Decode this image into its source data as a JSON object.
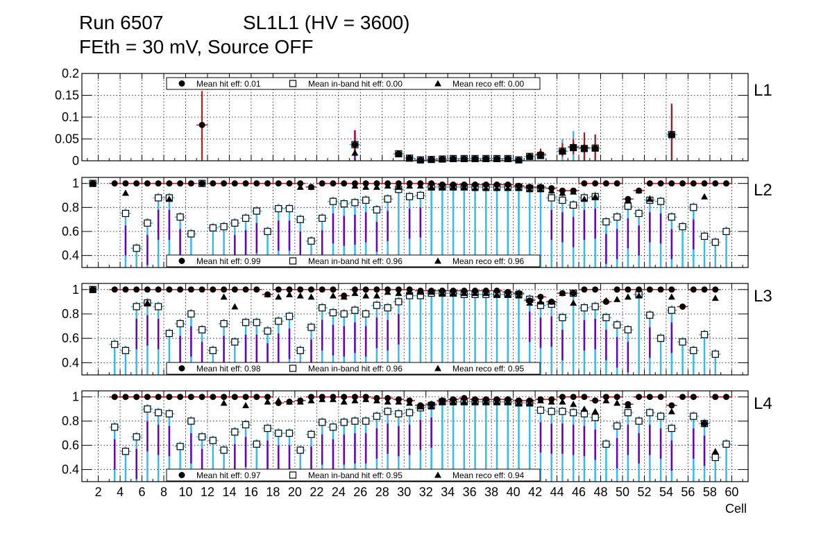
{
  "title": {
    "run": "Run 6507",
    "chamber": "SL1L1 (HV = 3600)",
    "conditions": "FEth = 30 mV, Source OFF"
  },
  "colors": {
    "hit": "#000000",
    "hit_err": "#d40000",
    "inband_err": "#33bbee",
    "reco_err": "#6a00b8",
    "grid": "#000000"
  },
  "chart_data": {
    "type": "scatter",
    "xlabel": "Cell",
    "x_ticks": [
      2,
      4,
      6,
      8,
      10,
      12,
      14,
      16,
      18,
      20,
      22,
      24,
      26,
      28,
      30,
      32,
      34,
      36,
      38,
      40,
      42,
      44,
      46,
      48,
      50,
      52,
      54,
      56,
      58,
      60
    ],
    "xlim": [
      0.5,
      61.5
    ],
    "series_names": [
      "Mean hit eff",
      "Mean in-band hit eff",
      "Mean reco eff"
    ],
    "panels": [
      {
        "id": "L1",
        "label": "L1",
        "ylim": [
          0,
          0.2
        ],
        "yticks": [
          "0",
          "0.05",
          "0.1",
          "0.15",
          "0.2"
        ],
        "yticks_val": [
          0,
          0.05,
          0.1,
          0.15,
          0.2
        ],
        "legend": {
          "hit": "Mean hit  eff: 0.01",
          "inband": "Mean in-band hit eff: 0.00",
          "reco": "Mean reco eff: 0.00"
        },
        "points": [
          {
            "cell": 11.5,
            "hit": 0.082,
            "inband": null,
            "reco": null,
            "hit_lo": 0.0,
            "hit_hi": 0.16
          },
          {
            "cell": 25.5,
            "hit": 0.037,
            "inband": 0.037,
            "reco": 0.018,
            "hit_lo": 0.02,
            "hit_hi": 0.07,
            "ib_lo": 0.01,
            "ib_hi": 0.06,
            "reco_lo": 0.0,
            "reco_hi": 0.07
          },
          {
            "cell": 29.5,
            "hit": 0.016,
            "inband": 0.016,
            "reco": 0.016,
            "hit_lo": 0.01,
            "hit_hi": 0.024
          },
          {
            "cell": 30.5,
            "hit": 0.006,
            "inband": 0.006,
            "reco": 0.006
          },
          {
            "cell": 31.5,
            "hit": 0.002,
            "inband": 0.002,
            "reco": 0.002
          },
          {
            "cell": 32.5,
            "hit": 0.003,
            "inband": 0.003,
            "reco": 0.003
          },
          {
            "cell": 33.5,
            "hit": 0.004,
            "inband": 0.004,
            "reco": 0.004
          },
          {
            "cell": 34.5,
            "hit": 0.005,
            "inband": 0.005,
            "reco": 0.005
          },
          {
            "cell": 35.5,
            "hit": 0.005,
            "inband": 0.005,
            "reco": 0.005
          },
          {
            "cell": 36.5,
            "hit": 0.005,
            "inband": 0.005,
            "reco": 0.005
          },
          {
            "cell": 37.5,
            "hit": 0.005,
            "inband": 0.005,
            "reco": 0.005
          },
          {
            "cell": 38.5,
            "hit": 0.005,
            "inband": 0.005,
            "reco": 0.005
          },
          {
            "cell": 39.5,
            "hit": 0.005,
            "inband": 0.005,
            "reco": 0.005
          },
          {
            "cell": 40.5,
            "hit": 0.002,
            "inband": 0.002,
            "reco": 0.002
          },
          {
            "cell": 41.5,
            "hit": 0.01,
            "inband": 0.01,
            "reco": 0.01
          },
          {
            "cell": 42.5,
            "hit": 0.015,
            "inband": 0.012,
            "reco": 0.012,
            "hit_lo": 0.005,
            "hit_hi": 0.028
          },
          {
            "cell": 44.5,
            "hit": 0.022,
            "inband": 0.022,
            "reco": 0.022,
            "hit_lo": 0.01,
            "hit_hi": 0.04,
            "ib_lo": 0.0,
            "ib_hi": 0.05
          },
          {
            "cell": 45.5,
            "hit": 0.032,
            "inband": 0.03,
            "reco": 0.03,
            "hit_lo": 0.015,
            "hit_hi": 0.05,
            "ib_lo": 0.0,
            "ib_hi": 0.068
          },
          {
            "cell": 46.5,
            "hit": 0.03,
            "inband": 0.028,
            "reco": 0.028,
            "hit_lo": 0.0,
            "hit_hi": 0.065,
            "ib_lo": 0.0,
            "ib_hi": 0.04
          },
          {
            "cell": 47.5,
            "hit": 0.029,
            "inband": 0.029,
            "reco": 0.029,
            "hit_lo": 0.0,
            "hit_hi": 0.06,
            "ib_lo": 0.0,
            "ib_hi": 0.06
          },
          {
            "cell": 54.5,
            "hit": 0.06,
            "inband": 0.06,
            "reco": 0.06,
            "hit_lo": 0.0,
            "hit_hi": 0.13,
            "ib_lo": 0.0,
            "ib_hi": 0.132
          }
        ]
      },
      {
        "id": "L2",
        "label": "L2",
        "ylim": [
          0.3,
          1.05
        ],
        "yticks": [
          "0.4",
          "0.6",
          "0.8",
          "1"
        ],
        "yticks_val": [
          0.4,
          0.6,
          0.8,
          1.0
        ],
        "legend": {
          "hit": "Mean hit  eff: 0.99",
          "inband": "Mean in-band hit eff: 0.96",
          "reco": "Mean reco eff: 0.96"
        },
        "inband": [
          1.0,
          null,
          null,
          0.75,
          0.46,
          0.67,
          0.88,
          0.88,
          0.72,
          0.58,
          1.0,
          0.63,
          0.64,
          0.67,
          0.71,
          0.77,
          0.6,
          0.79,
          0.79,
          0.7,
          0.52,
          0.71,
          0.85,
          0.83,
          0.84,
          0.86,
          0.78,
          0.87,
          0.95,
          0.89,
          0.9,
          0.97,
          0.97,
          0.97,
          0.97,
          0.97,
          0.97,
          0.97,
          0.97,
          0.97,
          0.96,
          0.96,
          0.88,
          0.86,
          0.82,
          0.88,
          0.89,
          0.68,
          0.72,
          0.81,
          0.75,
          0.86,
          0.85,
          0.72,
          0.64,
          0.8,
          0.56,
          0.51,
          0.6,
          null
        ],
        "hit": [
          1.0,
          null,
          1.0,
          1.0,
          1.0,
          1.0,
          1.0,
          1.0,
          1.0,
          1.0,
          1.0,
          1.0,
          1.0,
          1.0,
          1.0,
          1.0,
          1.0,
          1.0,
          1.0,
          1.0,
          0.97,
          1.0,
          1.0,
          1.0,
          1.0,
          1.0,
          1.0,
          1.0,
          1.0,
          1.0,
          1.0,
          1.0,
          0.99,
          0.99,
          0.99,
          0.99,
          0.99,
          0.99,
          0.99,
          0.98,
          0.97,
          0.97,
          0.96,
          0.94,
          0.94,
          1.0,
          1.0,
          1.0,
          1.0,
          0.87,
          0.94,
          1.0,
          1.0,
          1.0,
          1.0,
          1.0,
          1.0,
          1.0,
          1.0,
          null
        ],
        "reco": [
          1.0,
          null,
          null,
          0.92,
          null,
          null,
          null,
          0.87,
          null,
          null,
          null,
          null,
          null,
          null,
          null,
          null,
          null,
          null,
          null,
          0.97,
          0.97,
          null,
          null,
          null,
          0.98,
          0.97,
          0.97,
          0.98,
          0.97,
          0.98,
          0.98,
          0.97,
          0.97,
          0.97,
          0.97,
          0.96,
          0.96,
          0.96,
          0.96,
          0.96,
          0.95,
          0.95,
          0.94,
          0.92,
          0.93,
          0.87,
          0.89,
          null,
          null,
          0.86,
          0.94,
          0.87,
          null,
          null,
          null,
          null,
          0.89,
          null,
          null,
          null
        ]
      },
      {
        "id": "L3",
        "label": "L3",
        "ylim": [
          0.3,
          1.05
        ],
        "yticks": [
          "0.4",
          "0.6",
          "0.8",
          "1"
        ],
        "yticks_val": [
          0.4,
          0.6,
          0.8,
          1.0
        ],
        "legend": {
          "hit": "Mean hit  eff: 0.98",
          "inband": "Mean in-band hit eff: 0.96",
          "reco": "Mean reco eff: 0.95"
        },
        "inband": [
          1.0,
          null,
          0.55,
          0.5,
          0.86,
          0.89,
          0.86,
          0.64,
          0.72,
          0.8,
          0.67,
          0.5,
          0.72,
          0.57,
          0.73,
          0.73,
          0.66,
          0.74,
          0.78,
          0.5,
          0.69,
          0.85,
          0.81,
          0.8,
          0.83,
          0.8,
          0.87,
          0.85,
          0.9,
          0.95,
          0.95,
          0.97,
          0.97,
          0.97,
          0.96,
          0.96,
          0.96,
          0.96,
          0.96,
          0.96,
          0.92,
          0.87,
          0.88,
          0.77,
          0.97,
          0.85,
          0.86,
          0.77,
          0.71,
          0.67,
          0.96,
          0.79,
          0.6,
          0.83,
          0.57,
          0.5,
          0.63,
          0.47,
          null,
          null
        ],
        "hit": [
          1.0,
          null,
          1.0,
          1.0,
          1.0,
          1.0,
          1.0,
          1.0,
          1.0,
          1.0,
          1.0,
          1.0,
          1.0,
          1.0,
          1.0,
          1.0,
          0.96,
          1.0,
          1.0,
          1.0,
          1.0,
          1.0,
          1.0,
          0.95,
          1.0,
          1.0,
          1.0,
          1.0,
          1.0,
          1.0,
          0.99,
          0.99,
          0.99,
          0.99,
          0.99,
          0.99,
          0.99,
          0.99,
          0.98,
          0.97,
          0.91,
          0.94,
          0.9,
          0.97,
          0.97,
          1.0,
          1.0,
          0.9,
          1.0,
          1.0,
          1.0,
          1.0,
          1.0,
          1.0,
          0.86,
          1.0,
          1.0,
          1.0,
          null,
          null
        ],
        "reco": [
          1.0,
          null,
          null,
          null,
          null,
          0.89,
          null,
          null,
          null,
          null,
          null,
          null,
          0.94,
          0.86,
          null,
          null,
          0.96,
          0.94,
          0.96,
          0.95,
          0.94,
          null,
          0.95,
          0.94,
          0.97,
          0.95,
          0.95,
          0.98,
          0.97,
          0.98,
          0.98,
          0.98,
          0.97,
          0.97,
          0.97,
          0.97,
          0.97,
          0.96,
          0.96,
          0.95,
          0.89,
          0.9,
          0.9,
          0.97,
          0.89,
          null,
          null,
          0.91,
          0.92,
          0.94,
          0.95,
          null,
          null,
          0.94,
          null,
          null,
          null,
          0.93,
          null,
          null
        ]
      },
      {
        "id": "L4",
        "label": "L4",
        "ylim": [
          0.3,
          1.05
        ],
        "yticks": [
          "0.4",
          "0.6",
          "0.8",
          "1"
        ],
        "yticks_val": [
          0.4,
          0.6,
          0.8,
          1.0
        ],
        "legend": {
          "hit": "Mean hit  eff: 0.97",
          "inband": "Mean in-band hit eff: 0.95",
          "reco": "Mean reco eff: 0.94"
        },
        "inband": [
          null,
          null,
          0.75,
          0.55,
          0.67,
          0.9,
          0.87,
          0.86,
          0.59,
          0.8,
          0.67,
          0.64,
          0.56,
          0.71,
          0.77,
          0.61,
          0.74,
          0.7,
          0.7,
          0.56,
          0.69,
          0.79,
          0.75,
          0.79,
          0.8,
          0.8,
          0.84,
          0.88,
          0.86,
          0.87,
          0.91,
          0.93,
          0.96,
          0.96,
          0.96,
          0.96,
          0.96,
          0.96,
          0.96,
          0.95,
          0.95,
          0.89,
          0.88,
          0.88,
          0.87,
          0.86,
          0.83,
          0.61,
          0.76,
          0.87,
          0.8,
          0.87,
          0.84,
          0.74,
          null,
          0.84,
          0.78,
          0.5,
          0.61,
          null
        ],
        "hit": [
          null,
          null,
          1.0,
          1.0,
          1.0,
          1.0,
          1.0,
          1.0,
          1.0,
          1.0,
          1.0,
          1.0,
          1.0,
          1.0,
          1.0,
          1.0,
          1.0,
          0.95,
          0.96,
          0.97,
          1.0,
          1.0,
          1.0,
          1.0,
          1.0,
          1.0,
          0.99,
          0.99,
          0.98,
          0.97,
          0.93,
          0.94,
          0.97,
          0.98,
          0.99,
          0.98,
          0.98,
          0.98,
          0.98,
          0.97,
          0.97,
          0.98,
          0.98,
          1.0,
          1.0,
          1.0,
          0.97,
          1.0,
          1.0,
          0.94,
          1.0,
          1.0,
          1.0,
          0.93,
          1.0,
          1.0,
          0.78,
          1.0,
          1.0,
          null
        ],
        "reco": [
          null,
          null,
          null,
          null,
          null,
          null,
          null,
          null,
          null,
          null,
          null,
          null,
          0.95,
          null,
          0.93,
          null,
          0.96,
          0.97,
          0.96,
          0.96,
          0.97,
          0.98,
          0.98,
          0.96,
          0.97,
          0.98,
          0.97,
          0.96,
          0.96,
          0.95,
          0.92,
          0.92,
          0.96,
          0.96,
          0.96,
          0.96,
          0.96,
          0.96,
          0.96,
          0.95,
          0.95,
          0.97,
          0.96,
          0.96,
          0.94,
          0.9,
          0.88,
          0.97,
          0.95,
          0.93,
          null,
          null,
          null,
          0.88,
          null,
          null,
          null,
          0.55,
          null,
          null
        ]
      }
    ]
  }
}
